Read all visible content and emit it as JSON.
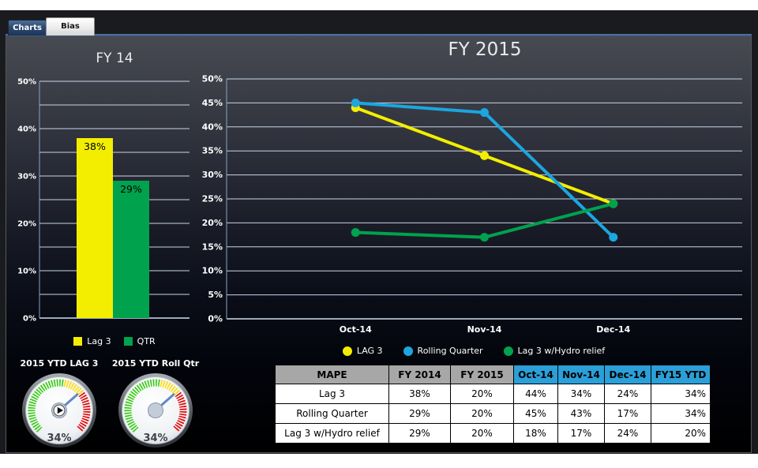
{
  "window": {
    "tabs": [
      {
        "label": "Charts",
        "active": true
      },
      {
        "label": "Bias",
        "active": false
      }
    ]
  },
  "chart_data": [
    {
      "id": "fy14-bar",
      "type": "bar",
      "title": "FY 14",
      "categories": [
        "Lag 3",
        "QTR"
      ],
      "values": [
        38,
        29
      ],
      "value_labels": [
        "38%",
        "29%"
      ],
      "bar_colors": [
        "#f3ee00",
        "#00a24e"
      ],
      "ylim": [
        0,
        50
      ],
      "ytick_step": 5,
      "ylabel_step": 10,
      "ytick_suffix": "%",
      "grid": true,
      "legend_position": "bottom",
      "legend": [
        {
          "label": "Lag 3",
          "color": "#f3ee00"
        },
        {
          "label": "QTR",
          "color": "#00a24e"
        }
      ]
    },
    {
      "id": "fy2015-line",
      "type": "line",
      "title": "FY 2015",
      "x": [
        "Oct-14",
        "Nov-14",
        "Dec-14"
      ],
      "series": [
        {
          "name": "LAG 3",
          "color": "#f3ee00",
          "values": [
            44,
            34,
            24
          ]
        },
        {
          "name": "Rolling Quarter",
          "color": "#1ca6e0",
          "values": [
            45,
            43,
            17
          ]
        },
        {
          "name": "Lag 3 w/Hydro relief",
          "color": "#00a24e",
          "values": [
            18,
            17,
            24
          ]
        }
      ],
      "ylim": [
        0,
        50
      ],
      "ytick_step": 5,
      "ytick_suffix": "%",
      "grid": true,
      "legend_position": "bottom"
    },
    {
      "id": "ytd-lag3-gauge",
      "type": "gauge",
      "title": "2015 YTD LAG 3",
      "value": 34,
      "value_label": "34%",
      "range": [
        0,
        50
      ],
      "bands": [
        {
          "color": "#32cc0c",
          "to": 27
        },
        {
          "color": "#ffdd00",
          "to": 35
        },
        {
          "color": "#e60000",
          "to": 50
        }
      ],
      "center_icon": "play-icon"
    },
    {
      "id": "ytd-rollqtr-gauge",
      "type": "gauge",
      "title": "2015 YTD Roll Qtr",
      "value": 34,
      "value_label": "34%",
      "range": [
        0,
        50
      ],
      "bands": [
        {
          "color": "#32cc0c",
          "to": 27
        },
        {
          "color": "#ffdd00",
          "to": 35
        },
        {
          "color": "#e60000",
          "to": 50
        }
      ],
      "center_icon": "none"
    },
    {
      "id": "mape-table",
      "type": "table",
      "headers": [
        "MAPE",
        "FY 2014",
        "FY 2015",
        "Oct-14",
        "Nov-14",
        "Dec-14",
        "FY15 YTD"
      ],
      "header_styles": [
        "gray",
        "gray",
        "gray",
        "blue",
        "blue",
        "blue",
        "blue"
      ],
      "rows": [
        [
          "Lag 3",
          "38%",
          "20%",
          "44%",
          "34%",
          "24%",
          "34%"
        ],
        [
          "Rolling Quarter",
          "29%",
          "20%",
          "45%",
          "43%",
          "17%",
          "34%"
        ],
        [
          "Lag 3 w/Hydro relief",
          "29%",
          "20%",
          "18%",
          "17%",
          "24%",
          "20%"
        ]
      ]
    }
  ],
  "colors": {
    "accent_yellow": "#f3ee00",
    "accent_green": "#00a24e",
    "accent_blue": "#1ca6e0",
    "table_header_gray": "#a7a7a7",
    "table_header_blue": "#2b9fd8",
    "gridline": "#c8d5e8"
  }
}
